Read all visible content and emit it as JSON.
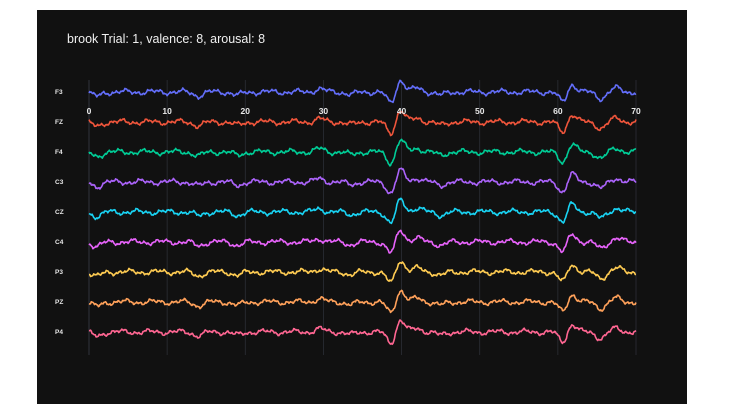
{
  "header": {
    "text": ""
  },
  "chart_data": {
    "type": "line",
    "title": "brook Trial: 1, valence: 8, arousal: 8",
    "xlabel": "",
    "ylabel": "",
    "xlim": [
      0,
      70
    ],
    "x_ticks": [
      0,
      10,
      20,
      30,
      40,
      50,
      60,
      70
    ],
    "grid": true,
    "legend": "none",
    "colors": {
      "background": "#111111",
      "grid": "#2c2f36",
      "text": "#e8e8e8"
    },
    "series": [
      {
        "name": "F3",
        "color": "#636efa"
      },
      {
        "name": "FZ",
        "color": "#ef553b"
      },
      {
        "name": "F4",
        "color": "#00cc96"
      },
      {
        "name": "C3",
        "color": "#ab63fa"
      },
      {
        "name": "CZ",
        "color": "#19d3f3"
      },
      {
        "name": "C4",
        "color": "#e763fa"
      },
      {
        "name": "P3",
        "color": "#fecb52"
      },
      {
        "name": "PZ",
        "color": "#ffa15a"
      },
      {
        "name": "P4",
        "color": "#ff6692"
      }
    ],
    "events": [
      {
        "t": 1.0,
        "amp": -0.7
      },
      {
        "t": 14.0,
        "amp": -0.6
      },
      {
        "t": 19.0,
        "amp": -0.5
      },
      {
        "t": 29.5,
        "amp": 0.5
      },
      {
        "t": 33.5,
        "amp": -0.4
      },
      {
        "t": 38.8,
        "amp": -2.3
      },
      {
        "t": 39.7,
        "amp": 2.4
      },
      {
        "t": 42.0,
        "amp": 0.6
      },
      {
        "t": 45.0,
        "amp": -0.5
      },
      {
        "t": 60.8,
        "amp": -2.1
      },
      {
        "t": 61.6,
        "amp": 1.8
      },
      {
        "t": 65.5,
        "amp": -1.0
      },
      {
        "t": 67.5,
        "amp": 0.6
      }
    ]
  }
}
